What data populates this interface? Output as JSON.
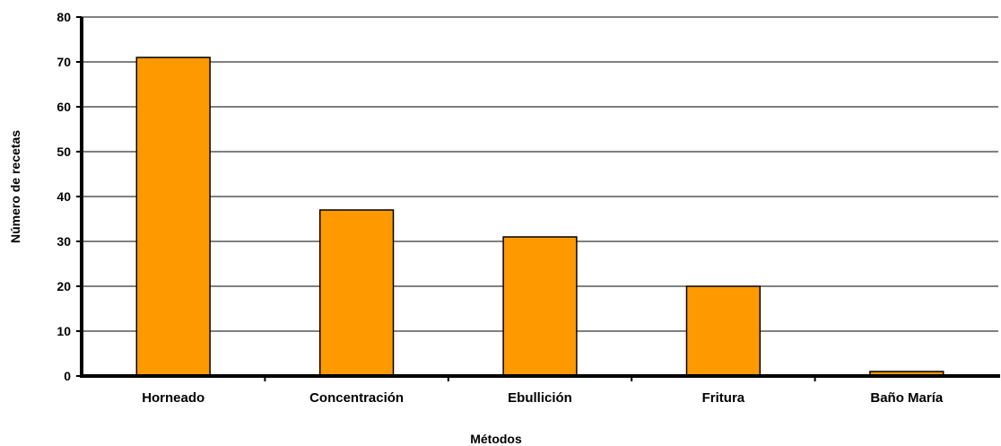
{
  "chart_data": {
    "type": "bar",
    "title": "",
    "xlabel": "Métodos",
    "ylabel": "Número de recetas",
    "categories": [
      "Horneado",
      "Concentración",
      "Ebullición",
      "Fritura",
      "Baño María"
    ],
    "values": [
      71,
      37,
      31,
      20,
      1
    ],
    "ylim": [
      0,
      80
    ],
    "yticks": [
      0,
      10,
      20,
      30,
      40,
      50,
      60,
      70,
      80
    ],
    "grid": true,
    "legend": "none",
    "bar_color": "#ff9900",
    "bar_edge_color": "#000000"
  }
}
